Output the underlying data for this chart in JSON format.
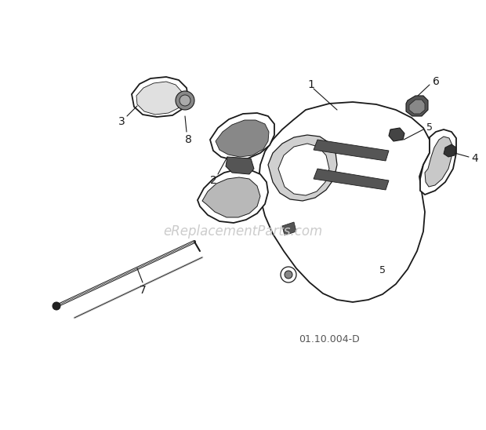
{
  "bg_color": "#ffffff",
  "watermark": "eReplacementParts.com",
  "diagram_code": "01.10.004-D",
  "line_color": "#1a1a1a",
  "text_color": "#1a1a1a",
  "watermark_color": "#cccccc",
  "figsize": [
    6.2,
    5.48
  ],
  "dpi": 100
}
